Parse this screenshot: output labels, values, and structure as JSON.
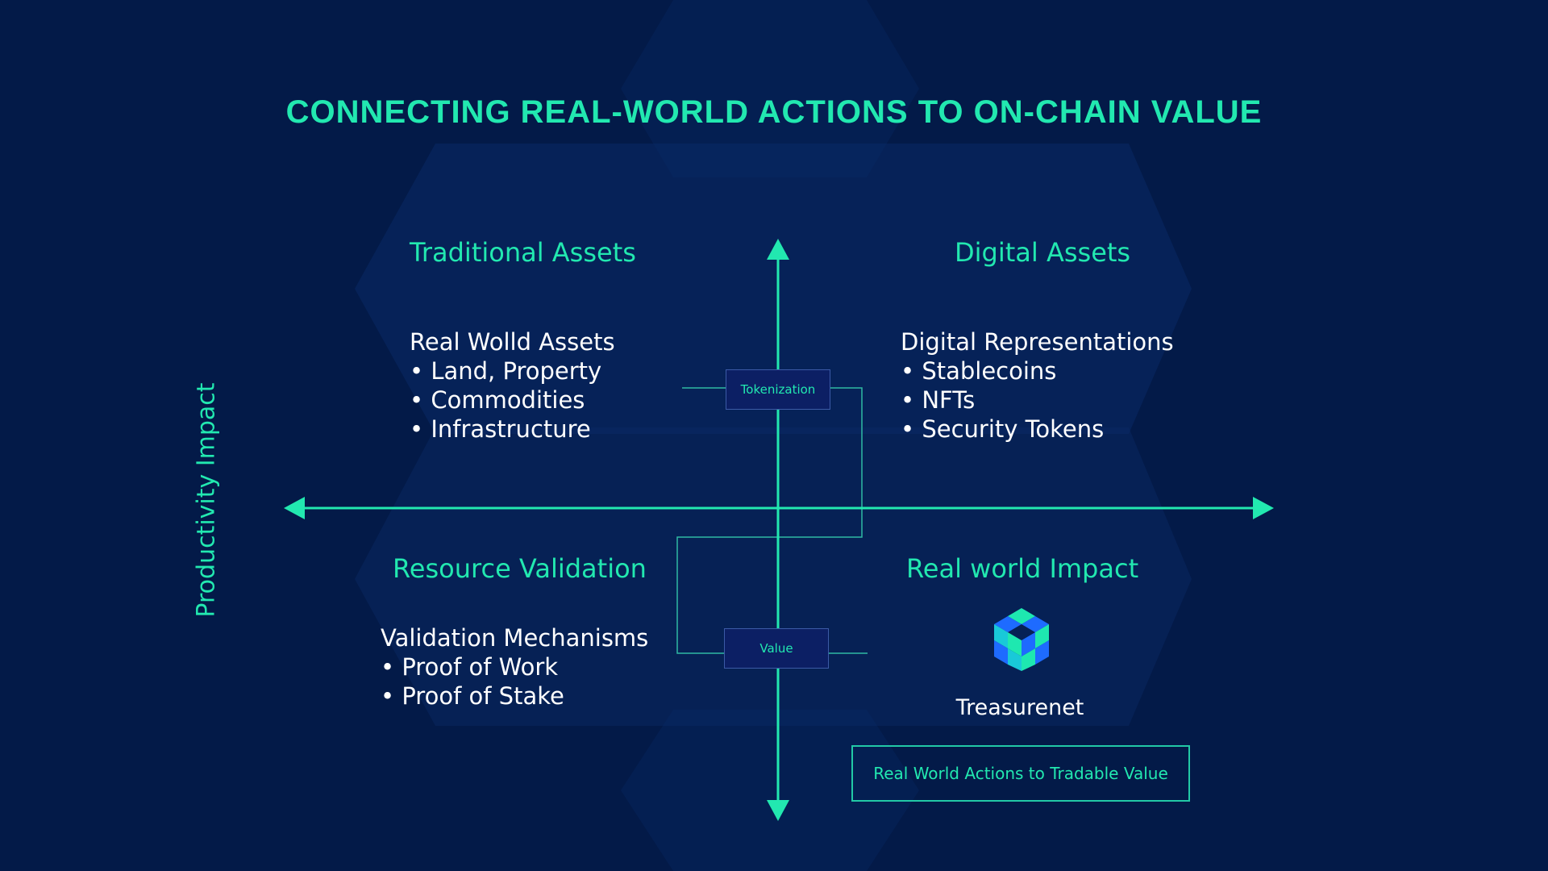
{
  "title": "CONNECTING REAL-WORLD ACTIONS TO ON-CHAIN VALUE",
  "y_axis_label": "Productivity Impact",
  "quadrants": {
    "top_left": {
      "title": "Traditional Assets",
      "heading": "Real Wolld Assets",
      "items": [
        "• Land, Property",
        "• Commodities",
        "• Infrastructure"
      ]
    },
    "top_right": {
      "title": "Digital Assets",
      "heading": "Digital Representations",
      "items": [
        "• Stablecoins",
        "• NFTs",
        "• Security Tokens"
      ]
    },
    "bottom_left": {
      "title": "Resource Validation",
      "heading": "Validation Mechanisms",
      "items": [
        "• Proof of Work",
        "• Proof of Stake"
      ]
    },
    "bottom_right": {
      "title": "Real world Impact",
      "brand": "Treasurenet",
      "tagline": "Real World Actions to Tradable Value"
    }
  },
  "boxes": {
    "tokenization": "Tokenization",
    "value": "Value"
  },
  "colors": {
    "background": "#031a48",
    "accent": "#22e8b0",
    "hexagon": "#0a2a66",
    "box_fill": "#0c1f64",
    "logo_blue": "#1e6bff",
    "logo_green": "#1ee8b0"
  },
  "icons": [
    "treasurenet-logo-icon",
    "arrow-up-icon",
    "arrow-down-icon",
    "arrow-left-icon",
    "arrow-right-icon"
  ]
}
